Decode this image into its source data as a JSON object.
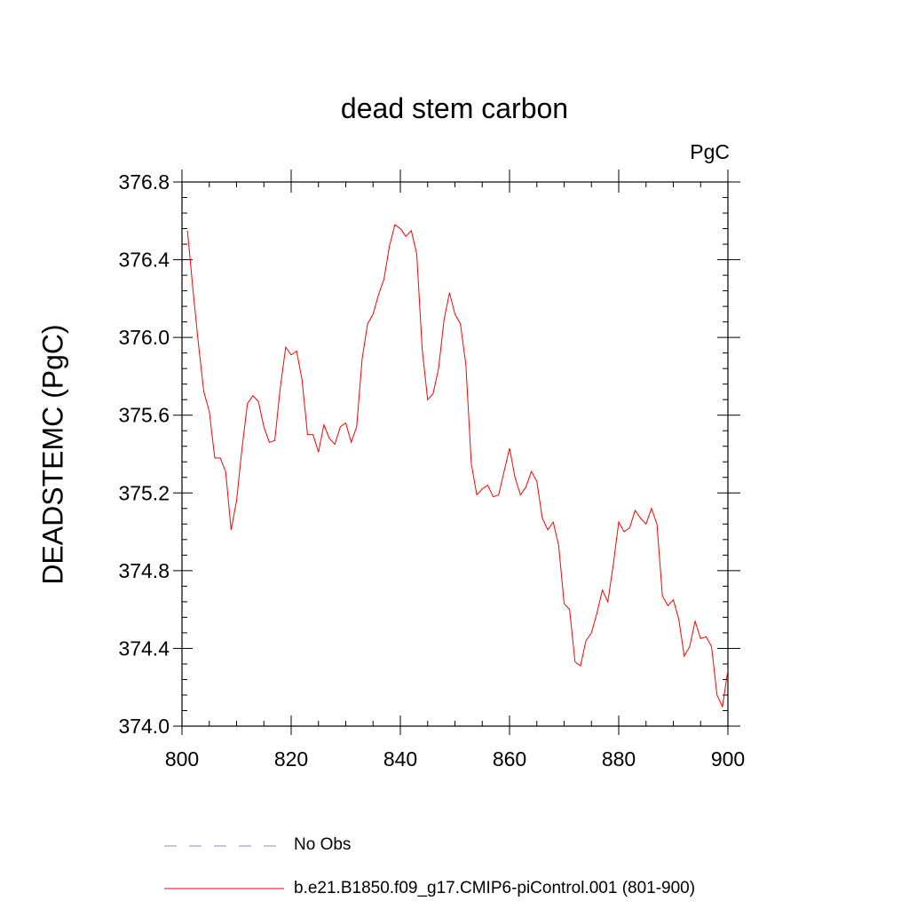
{
  "chart_data": {
    "type": "line",
    "title": "dead stem carbon",
    "units_label": "PgC",
    "ylabel": "DEADSTEMC  (PgC)",
    "xlabel": "",
    "xlim": [
      800,
      900
    ],
    "ylim": [
      374.0,
      376.8
    ],
    "x_ticks": [
      800,
      820,
      840,
      860,
      880,
      900
    ],
    "y_ticks": [
      374.0,
      374.4,
      374.8,
      375.2,
      375.6,
      376.0,
      376.4,
      376.8
    ],
    "y_tick_labels": [
      "374.0",
      "374.4",
      "374.8",
      "375.2",
      "375.6",
      "376.0",
      "376.4",
      "376.8"
    ],
    "grid": false,
    "legend_position": "bottom",
    "legend": [
      {
        "label": "No Obs",
        "color": "#8888cc",
        "style": "dashed"
      },
      {
        "label": "b.e21.B1850.f09_g17.CMIP6-piControl.001 (801-900)",
        "color": "#ff0000",
        "style": "solid"
      }
    ],
    "series": [
      {
        "name": "b.e21.B1850.f09_g17.CMIP6-piControl.001 (801-900)",
        "color": "#ff0000",
        "x": [
          801,
          802,
          803,
          804,
          805,
          806,
          807,
          808,
          809,
          810,
          811,
          812,
          813,
          814,
          815,
          816,
          817,
          818,
          819,
          820,
          821,
          822,
          823,
          824,
          825,
          826,
          827,
          828,
          829,
          830,
          831,
          832,
          833,
          834,
          835,
          836,
          837,
          838,
          839,
          840,
          841,
          842,
          843,
          844,
          845,
          846,
          847,
          848,
          849,
          850,
          851,
          852,
          853,
          854,
          855,
          856,
          857,
          858,
          859,
          860,
          861,
          862,
          863,
          864,
          865,
          866,
          867,
          868,
          869,
          870,
          871,
          872,
          873,
          874,
          875,
          876,
          877,
          878,
          879,
          880,
          881,
          882,
          883,
          884,
          885,
          886,
          887,
          888,
          889,
          890,
          891,
          892,
          893,
          894,
          895,
          896,
          897,
          898,
          899,
          900
        ],
        "y": [
          376.55,
          376.25,
          375.97,
          375.72,
          375.62,
          375.38,
          375.38,
          375.31,
          375.01,
          375.16,
          375.43,
          375.66,
          375.7,
          375.67,
          375.54,
          375.46,
          375.47,
          375.74,
          375.95,
          375.91,
          375.93,
          375.78,
          375.5,
          375.5,
          375.41,
          375.55,
          375.48,
          375.45,
          375.54,
          375.56,
          375.46,
          375.54,
          375.89,
          376.07,
          376.12,
          376.22,
          376.3,
          376.47,
          376.58,
          376.56,
          376.52,
          376.55,
          376.43,
          375.94,
          375.68,
          375.71,
          375.84,
          376.09,
          376.23,
          376.12,
          376.07,
          375.86,
          375.35,
          375.19,
          375.22,
          375.24,
          375.18,
          375.19,
          375.31,
          375.43,
          375.28,
          375.19,
          375.23,
          375.31,
          375.26,
          375.07,
          375.01,
          375.05,
          374.93,
          374.63,
          374.6,
          374.33,
          374.31,
          374.44,
          374.48,
          374.58,
          374.7,
          374.64,
          374.83,
          375.05,
          375.0,
          375.02,
          375.11,
          375.07,
          375.04,
          375.12,
          375.04,
          374.67,
          374.62,
          374.65,
          374.55,
          374.36,
          374.41,
          374.54,
          374.45,
          374.46,
          374.41,
          374.16,
          374.1,
          374.29
        ]
      }
    ]
  }
}
